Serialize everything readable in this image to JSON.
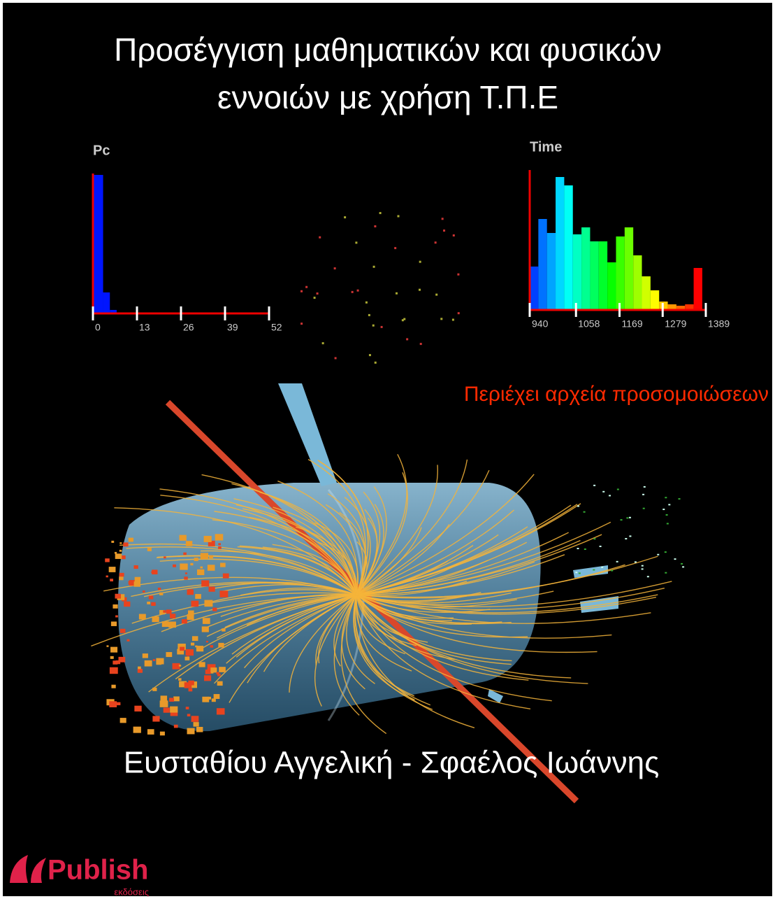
{
  "title": [
    "Προσέγγιση μαθηματικών και φυσικών",
    "εννοιών με χρήση Τ.Π.Ε"
  ],
  "histograms": [
    {
      "label": "Pc",
      "bins": [
        0,
        3,
        5,
        7
      ],
      "counts": [
        198,
        30,
        5
      ],
      "xlim": [
        0,
        52
      ],
      "xticks": [
        0,
        13,
        26,
        39,
        52
      ]
    },
    {
      "label": "Time",
      "bins": [
        940,
        962,
        984,
        1006,
        1028,
        1050,
        1072,
        1094,
        1116,
        1138,
        1160,
        1182,
        1204,
        1226,
        1248,
        1270,
        1292,
        1314,
        1336,
        1358,
        1380
      ],
      "counts": [
        62,
        130,
        110,
        190,
        178,
        108,
        118,
        98,
        98,
        68,
        105,
        118,
        78,
        48,
        28,
        12,
        8,
        6,
        8,
        60
      ],
      "xlim": [
        940,
        1389
      ],
      "xticks": [
        940,
        1058,
        1169,
        1279,
        1389
      ]
    }
  ],
  "subtitle": "Περιέχει αρχεία προσομοιώσεων",
  "authors": "Ευσταθίου Αγγελική - Σφαέλος Ιωάννης",
  "publisher": {
    "name": "Publish",
    "tagline": "εκδόσεις"
  }
}
